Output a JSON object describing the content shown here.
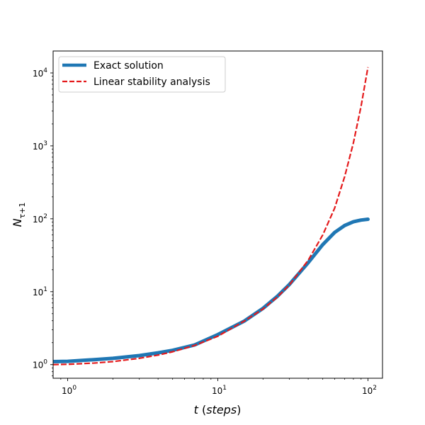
{
  "chart_data": {
    "type": "line",
    "xscale": "log",
    "yscale": "log",
    "xlim": [
      0.8,
      125
    ],
    "ylim": [
      0.65,
      20000
    ],
    "xlabel_var": "t",
    "xlabel_unit": "(steps)",
    "ylabel_var": "N",
    "ylabel_sub": "τ+1",
    "x_tick_labels": [
      {
        "base": "10",
        "exp": "0",
        "value": 1
      },
      {
        "base": "10",
        "exp": "1",
        "value": 10
      },
      {
        "base": "10",
        "exp": "2",
        "value": 100
      }
    ],
    "y_tick_labels": [
      {
        "base": "10",
        "exp": "0",
        "value": 1
      },
      {
        "base": "10",
        "exp": "1",
        "value": 10
      },
      {
        "base": "10",
        "exp": "2",
        "value": 100
      },
      {
        "base": "10",
        "exp": "3",
        "value": 1000
      },
      {
        "base": "10",
        "exp": "4",
        "value": 10000
      }
    ],
    "legend_position": "upper-left",
    "series": [
      {
        "name": "Exact solution",
        "color": "#1f77b4",
        "style": "solid",
        "x": [
          0.8,
          1,
          1.5,
          2,
          3,
          4,
          5,
          7,
          10,
          15,
          20,
          25,
          30,
          40,
          50,
          60,
          70,
          80,
          90,
          100
        ],
        "y": [
          1.1,
          1.11,
          1.17,
          1.22,
          1.33,
          1.45,
          1.57,
          1.86,
          2.58,
          3.95,
          5.91,
          8.7,
          12.6,
          25,
          44.2,
          65,
          81,
          91,
          96,
          98.5
        ]
      },
      {
        "name": "Linear stability analysis",
        "color": "#e41a1c",
        "style": "dashed",
        "x": [
          0.8,
          1,
          1.5,
          2,
          3,
          4,
          5,
          7,
          10,
          15,
          20,
          25,
          30,
          40,
          50,
          60,
          70,
          80,
          90,
          100
        ],
        "y": [
          1.0,
          1.01,
          1.05,
          1.1,
          1.22,
          1.35,
          1.5,
          1.83,
          2.45,
          3.95,
          5.8,
          8.5,
          12.4,
          27,
          60,
          140,
          380,
          1100,
          3500,
          12000
        ]
      }
    ]
  }
}
